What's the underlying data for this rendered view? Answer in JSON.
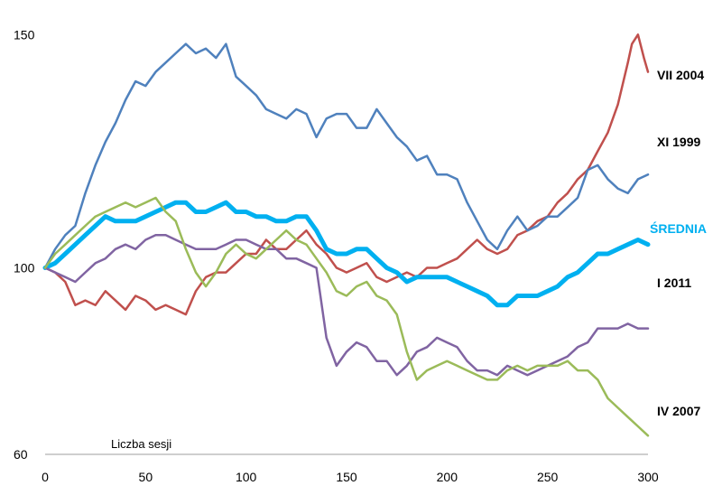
{
  "chart_data": {
    "type": "line",
    "xlabel": "Liczba sesji",
    "ylabel": "",
    "xlim": [
      0,
      300
    ],
    "ylim": [
      60,
      152
    ],
    "x_ticks": [
      0,
      50,
      100,
      150,
      200,
      250,
      300
    ],
    "y_ticks": [
      60,
      100,
      150
    ],
    "grid": false,
    "legend": "labels at line ends (right)",
    "series": [
      {
        "name": "VII 2004",
        "color": "#c0504d",
        "width": 2.5,
        "points": [
          [
            0,
            100
          ],
          [
            5,
            99
          ],
          [
            10,
            97
          ],
          [
            15,
            92
          ],
          [
            20,
            93
          ],
          [
            25,
            92
          ],
          [
            30,
            95
          ],
          [
            35,
            93
          ],
          [
            40,
            91
          ],
          [
            45,
            94
          ],
          [
            50,
            93
          ],
          [
            55,
            91
          ],
          [
            60,
            92
          ],
          [
            65,
            91
          ],
          [
            70,
            90
          ],
          [
            75,
            95
          ],
          [
            80,
            98
          ],
          [
            85,
            99
          ],
          [
            90,
            99
          ],
          [
            95,
            101
          ],
          [
            100,
            103
          ],
          [
            105,
            103
          ],
          [
            110,
            106
          ],
          [
            115,
            104
          ],
          [
            120,
            104
          ],
          [
            125,
            106
          ],
          [
            130,
            108
          ],
          [
            135,
            105
          ],
          [
            140,
            103
          ],
          [
            145,
            100
          ],
          [
            150,
            99
          ],
          [
            155,
            100
          ],
          [
            160,
            101
          ],
          [
            165,
            98
          ],
          [
            170,
            97
          ],
          [
            175,
            98
          ],
          [
            180,
            99
          ],
          [
            185,
            98
          ],
          [
            190,
            100
          ],
          [
            195,
            100
          ],
          [
            200,
            101
          ],
          [
            205,
            102
          ],
          [
            210,
            104
          ],
          [
            215,
            106
          ],
          [
            220,
            104
          ],
          [
            225,
            103
          ],
          [
            230,
            104
          ],
          [
            235,
            107
          ],
          [
            240,
            108
          ],
          [
            245,
            110
          ],
          [
            250,
            111
          ],
          [
            255,
            114
          ],
          [
            260,
            116
          ],
          [
            265,
            119
          ],
          [
            270,
            121
          ],
          [
            275,
            125
          ],
          [
            280,
            129
          ],
          [
            285,
            135
          ],
          [
            290,
            144
          ],
          [
            292,
            148
          ],
          [
            295,
            150
          ],
          [
            298,
            145
          ],
          [
            300,
            142
          ]
        ]
      },
      {
        "name": "XI 1999",
        "color": "#4f81bd",
        "width": 2.5,
        "points": [
          [
            0,
            100
          ],
          [
            5,
            104
          ],
          [
            10,
            107
          ],
          [
            15,
            109
          ],
          [
            20,
            116
          ],
          [
            25,
            122
          ],
          [
            30,
            127
          ],
          [
            35,
            131
          ],
          [
            40,
            136
          ],
          [
            45,
            140
          ],
          [
            50,
            139
          ],
          [
            55,
            142
          ],
          [
            60,
            144
          ],
          [
            65,
            146
          ],
          [
            70,
            148
          ],
          [
            75,
            146
          ],
          [
            80,
            147
          ],
          [
            85,
            145
          ],
          [
            90,
            148
          ],
          [
            95,
            141
          ],
          [
            100,
            139
          ],
          [
            105,
            137
          ],
          [
            110,
            134
          ],
          [
            115,
            133
          ],
          [
            120,
            132
          ],
          [
            125,
            134
          ],
          [
            130,
            133
          ],
          [
            135,
            128
          ],
          [
            140,
            132
          ],
          [
            145,
            133
          ],
          [
            150,
            133
          ],
          [
            155,
            130
          ],
          [
            160,
            130
          ],
          [
            165,
            134
          ],
          [
            170,
            131
          ],
          [
            175,
            128
          ],
          [
            180,
            126
          ],
          [
            185,
            123
          ],
          [
            190,
            124
          ],
          [
            195,
            120
          ],
          [
            200,
            120
          ],
          [
            205,
            119
          ],
          [
            210,
            114
          ],
          [
            215,
            110
          ],
          [
            220,
            106
          ],
          [
            225,
            104
          ],
          [
            230,
            108
          ],
          [
            235,
            111
          ],
          [
            240,
            108
          ],
          [
            245,
            109
          ],
          [
            250,
            111
          ],
          [
            255,
            111
          ],
          [
            260,
            113
          ],
          [
            265,
            115
          ],
          [
            270,
            121
          ],
          [
            275,
            122
          ],
          [
            280,
            119
          ],
          [
            285,
            117
          ],
          [
            290,
            116
          ],
          [
            295,
            119
          ],
          [
            300,
            120
          ]
        ]
      },
      {
        "name": "ŚREDNIA",
        "color": "#00b0f0",
        "width": 5,
        "points": [
          [
            0,
            100
          ],
          [
            5,
            101
          ],
          [
            10,
            103
          ],
          [
            15,
            105
          ],
          [
            20,
            107
          ],
          [
            25,
            109
          ],
          [
            30,
            111
          ],
          [
            35,
            110
          ],
          [
            40,
            110
          ],
          [
            45,
            110
          ],
          [
            50,
            111
          ],
          [
            55,
            112
          ],
          [
            60,
            113
          ],
          [
            65,
            114
          ],
          [
            70,
            114
          ],
          [
            75,
            112
          ],
          [
            80,
            112
          ],
          [
            85,
            113
          ],
          [
            90,
            114
          ],
          [
            95,
            112
          ],
          [
            100,
            112
          ],
          [
            105,
            111
          ],
          [
            110,
            111
          ],
          [
            115,
            110
          ],
          [
            120,
            110
          ],
          [
            125,
            111
          ],
          [
            130,
            111
          ],
          [
            135,
            108
          ],
          [
            140,
            104
          ],
          [
            145,
            103
          ],
          [
            150,
            103
          ],
          [
            155,
            104
          ],
          [
            160,
            104
          ],
          [
            165,
            102
          ],
          [
            170,
            100
          ],
          [
            175,
            99
          ],
          [
            180,
            97
          ],
          [
            185,
            98
          ],
          [
            190,
            98
          ],
          [
            195,
            98
          ],
          [
            200,
            98
          ],
          [
            205,
            97
          ],
          [
            210,
            96
          ],
          [
            215,
            95
          ],
          [
            220,
            94
          ],
          [
            225,
            92
          ],
          [
            230,
            92
          ],
          [
            235,
            94
          ],
          [
            240,
            94
          ],
          [
            245,
            94
          ],
          [
            250,
            95
          ],
          [
            255,
            96
          ],
          [
            260,
            98
          ],
          [
            265,
            99
          ],
          [
            270,
            101
          ],
          [
            275,
            103
          ],
          [
            280,
            103
          ],
          [
            285,
            104
          ],
          [
            290,
            105
          ],
          [
            295,
            106
          ],
          [
            300,
            105
          ]
        ]
      },
      {
        "name": "I 2011",
        "color": "#8064a2",
        "width": 2.5,
        "points": [
          [
            0,
            100
          ],
          [
            5,
            99
          ],
          [
            10,
            98
          ],
          [
            15,
            97
          ],
          [
            20,
            99
          ],
          [
            25,
            101
          ],
          [
            30,
            102
          ],
          [
            35,
            104
          ],
          [
            40,
            105
          ],
          [
            45,
            104
          ],
          [
            50,
            106
          ],
          [
            55,
            107
          ],
          [
            60,
            107
          ],
          [
            65,
            106
          ],
          [
            70,
            105
          ],
          [
            75,
            104
          ],
          [
            80,
            104
          ],
          [
            85,
            104
          ],
          [
            90,
            105
          ],
          [
            95,
            106
          ],
          [
            100,
            106
          ],
          [
            105,
            105
          ],
          [
            110,
            104
          ],
          [
            115,
            104
          ],
          [
            120,
            102
          ],
          [
            125,
            102
          ],
          [
            130,
            101
          ],
          [
            135,
            100
          ],
          [
            140,
            85
          ],
          [
            145,
            79
          ],
          [
            150,
            82
          ],
          [
            155,
            84
          ],
          [
            160,
            83
          ],
          [
            165,
            80
          ],
          [
            170,
            80
          ],
          [
            175,
            77
          ],
          [
            180,
            79
          ],
          [
            185,
            82
          ],
          [
            190,
            83
          ],
          [
            195,
            85
          ],
          [
            200,
            84
          ],
          [
            205,
            83
          ],
          [
            210,
            80
          ],
          [
            215,
            78
          ],
          [
            220,
            78
          ],
          [
            225,
            77
          ],
          [
            230,
            79
          ],
          [
            235,
            78
          ],
          [
            240,
            77
          ],
          [
            245,
            78
          ],
          [
            250,
            79
          ],
          [
            255,
            80
          ],
          [
            260,
            81
          ],
          [
            265,
            83
          ],
          [
            270,
            84
          ],
          [
            275,
            87
          ],
          [
            280,
            87
          ],
          [
            285,
            87
          ],
          [
            290,
            88
          ],
          [
            295,
            87
          ],
          [
            300,
            87
          ]
        ]
      },
      {
        "name": "IV 2007",
        "color": "#9bbb59",
        "width": 2.5,
        "points": [
          [
            0,
            100
          ],
          [
            5,
            103
          ],
          [
            10,
            105
          ],
          [
            15,
            107
          ],
          [
            20,
            109
          ],
          [
            25,
            111
          ],
          [
            30,
            112
          ],
          [
            35,
            113
          ],
          [
            40,
            114
          ],
          [
            45,
            113
          ],
          [
            50,
            114
          ],
          [
            55,
            115
          ],
          [
            60,
            112
          ],
          [
            65,
            110
          ],
          [
            70,
            104
          ],
          [
            75,
            99
          ],
          [
            80,
            96
          ],
          [
            85,
            99
          ],
          [
            90,
            103
          ],
          [
            95,
            105
          ],
          [
            100,
            103
          ],
          [
            105,
            102
          ],
          [
            110,
            104
          ],
          [
            115,
            106
          ],
          [
            120,
            108
          ],
          [
            125,
            106
          ],
          [
            130,
            105
          ],
          [
            135,
            102
          ],
          [
            140,
            99
          ],
          [
            145,
            95
          ],
          [
            150,
            94
          ],
          [
            155,
            96
          ],
          [
            160,
            97
          ],
          [
            165,
            94
          ],
          [
            170,
            93
          ],
          [
            175,
            90
          ],
          [
            180,
            82
          ],
          [
            185,
            76
          ],
          [
            190,
            78
          ],
          [
            195,
            79
          ],
          [
            200,
            80
          ],
          [
            205,
            79
          ],
          [
            210,
            78
          ],
          [
            215,
            77
          ],
          [
            220,
            76
          ],
          [
            225,
            76
          ],
          [
            230,
            78
          ],
          [
            235,
            79
          ],
          [
            240,
            78
          ],
          [
            245,
            79
          ],
          [
            250,
            79
          ],
          [
            255,
            79
          ],
          [
            260,
            80
          ],
          [
            265,
            78
          ],
          [
            270,
            78
          ],
          [
            275,
            76
          ],
          [
            280,
            72
          ],
          [
            285,
            70
          ],
          [
            290,
            68
          ],
          [
            295,
            66
          ],
          [
            300,
            64
          ]
        ]
      }
    ]
  }
}
